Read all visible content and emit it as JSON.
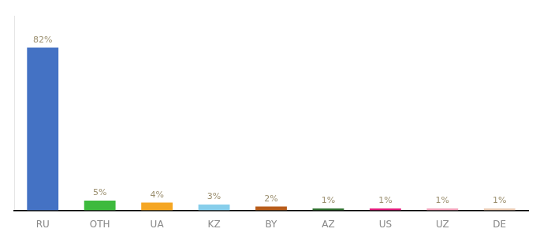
{
  "chart_data": {
    "type": "bar",
    "categories": [
      "RU",
      "OTH",
      "UA",
      "KZ",
      "BY",
      "AZ",
      "US",
      "UZ",
      "DE"
    ],
    "values": [
      82,
      5,
      4,
      3,
      2,
      1,
      1,
      1,
      1
    ],
    "value_labels": [
      "82%",
      "5%",
      "4%",
      "3%",
      "2%",
      "1%",
      "1%",
      "1%",
      "1%"
    ],
    "colors": [
      "#4472c4",
      "#3dba3d",
      "#f5a623",
      "#87ceeb",
      "#b85c1a",
      "#2d6e2d",
      "#e0197a",
      "#f0a0b8",
      "#e8c8b0"
    ],
    "ylim": [
      0,
      98
    ],
    "data_labels": true,
    "tick_labels": "x",
    "grid": false
  }
}
